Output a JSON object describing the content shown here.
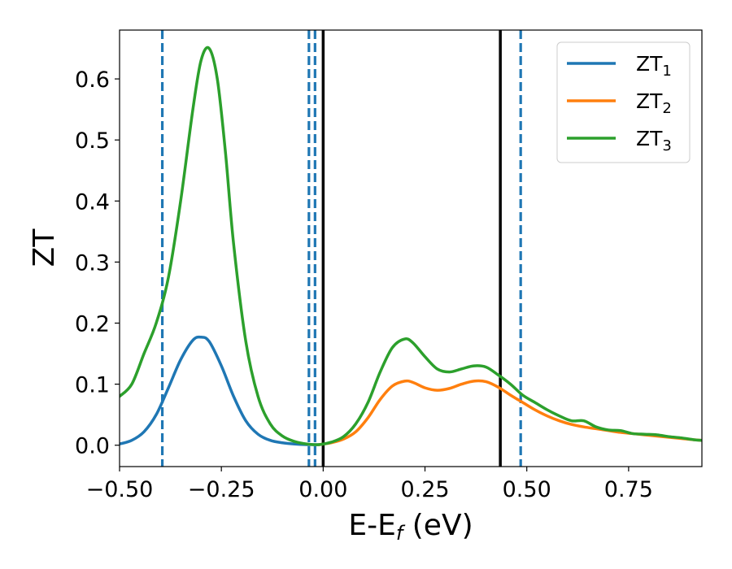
{
  "chart_data": {
    "type": "line",
    "xlabel": "E-E",
    "xlabel_sub": "f",
    "xlabel_unit": " (eV)",
    "ylabel": "ZT",
    "xlim": [
      -0.5,
      0.93
    ],
    "ylim": [
      -0.035,
      0.68
    ],
    "xticks": [
      -0.5,
      -0.25,
      0.0,
      0.25,
      0.5,
      0.75
    ],
    "xtick_labels": [
      "−0.50",
      "−0.25",
      "0.00",
      "0.25",
      "0.50",
      "0.75"
    ],
    "yticks": [
      0.0,
      0.1,
      0.2,
      0.3,
      0.4,
      0.5,
      0.6
    ],
    "ytick_labels": [
      "0.0",
      "0.1",
      "0.2",
      "0.3",
      "0.4",
      "0.5",
      "0.6"
    ],
    "grid": false,
    "legend_position": "top-right",
    "series": [
      {
        "name": "ZT",
        "name_sub": "1",
        "color": "#1f77b4",
        "x": [
          -0.5,
          -0.47,
          -0.44,
          -0.41,
          -0.38,
          -0.35,
          -0.32,
          -0.3,
          -0.28,
          -0.25,
          -0.22,
          -0.19,
          -0.16,
          -0.13,
          -0.1,
          -0.07,
          -0.04,
          -0.01
        ],
        "y": [
          0.002,
          0.008,
          0.022,
          0.05,
          0.094,
          0.14,
          0.172,
          0.177,
          0.17,
          0.13,
          0.08,
          0.04,
          0.018,
          0.008,
          0.004,
          0.002,
          0.001,
          0.001
        ]
      },
      {
        "name": "ZT",
        "name_sub": "2",
        "color": "#ff7f0e",
        "x": [
          -0.01,
          0.02,
          0.05,
          0.08,
          0.11,
          0.14,
          0.17,
          0.2,
          0.22,
          0.25,
          0.28,
          0.31,
          0.34,
          0.37,
          0.4,
          0.43,
          0.46,
          0.49,
          0.52,
          0.55,
          0.58,
          0.61,
          0.64,
          0.67,
          0.7,
          0.73,
          0.76,
          0.79,
          0.82,
          0.85,
          0.88,
          0.91,
          0.93
        ],
        "y": [
          0.001,
          0.004,
          0.01,
          0.022,
          0.045,
          0.075,
          0.097,
          0.105,
          0.103,
          0.094,
          0.09,
          0.093,
          0.1,
          0.105,
          0.104,
          0.095,
          0.082,
          0.07,
          0.058,
          0.048,
          0.04,
          0.034,
          0.03,
          0.027,
          0.024,
          0.021,
          0.019,
          0.017,
          0.015,
          0.013,
          0.011,
          0.009,
          0.008
        ]
      },
      {
        "name": "ZT",
        "name_sub": "3",
        "color": "#2ca02c",
        "x": [
          -0.5,
          -0.47,
          -0.44,
          -0.41,
          -0.38,
          -0.35,
          -0.32,
          -0.3,
          -0.28,
          -0.26,
          -0.24,
          -0.22,
          -0.19,
          -0.16,
          -0.13,
          -0.1,
          -0.07,
          -0.04,
          -0.01,
          0.02,
          0.05,
          0.08,
          0.11,
          0.14,
          0.17,
          0.2,
          0.22,
          0.25,
          0.28,
          0.31,
          0.34,
          0.37,
          0.4,
          0.43,
          0.46,
          0.49,
          0.52,
          0.55,
          0.58,
          0.61,
          0.64,
          0.67,
          0.7,
          0.73,
          0.76,
          0.79,
          0.82,
          0.85,
          0.88,
          0.91,
          0.93
        ],
        "y": [
          0.08,
          0.1,
          0.15,
          0.2,
          0.275,
          0.4,
          0.55,
          0.63,
          0.65,
          0.6,
          0.48,
          0.33,
          0.17,
          0.08,
          0.035,
          0.015,
          0.006,
          0.002,
          0.001,
          0.005,
          0.014,
          0.035,
          0.07,
          0.12,
          0.16,
          0.174,
          0.168,
          0.145,
          0.125,
          0.12,
          0.125,
          0.13,
          0.128,
          0.115,
          0.1,
          0.082,
          0.07,
          0.058,
          0.048,
          0.04,
          0.04,
          0.03,
          0.025,
          0.024,
          0.019,
          0.018,
          0.017,
          0.014,
          0.012,
          0.009,
          0.008
        ]
      }
    ],
    "vlines": [
      {
        "x": -0.395,
        "style": "dashed",
        "color": "#1f77b4"
      },
      {
        "x": -0.035,
        "style": "dashed",
        "color": "#1f77b4"
      },
      {
        "x": -0.02,
        "style": "dashed",
        "color": "#1f77b4"
      },
      {
        "x": 0.0,
        "style": "solid",
        "color": "#000000"
      },
      {
        "x": 0.435,
        "style": "solid",
        "color": "#000000"
      },
      {
        "x": 0.485,
        "style": "dashed",
        "color": "#1f77b4"
      }
    ]
  }
}
